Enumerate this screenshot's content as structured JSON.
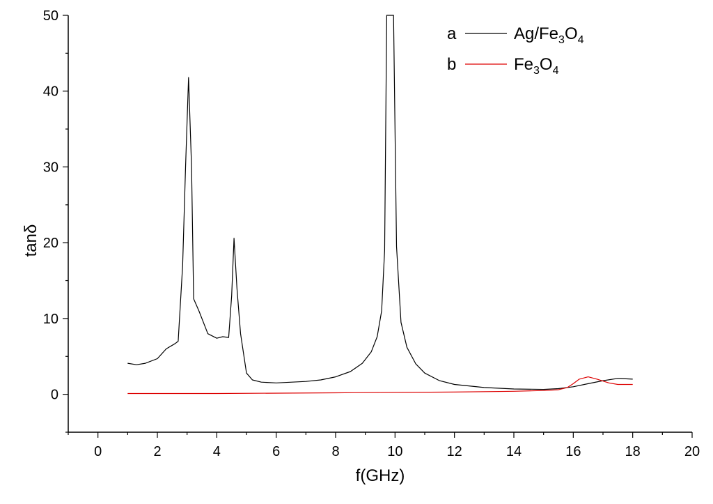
{
  "chart_data": {
    "type": "line",
    "xlabel": "f(GHz)",
    "ylabel": "tanδ",
    "xlim": [
      -1,
      20
    ],
    "ylim": [
      -5,
      50
    ],
    "x_ticks": [
      0,
      2,
      4,
      6,
      8,
      10,
      12,
      14,
      16,
      18,
      20
    ],
    "y_ticks": [
      0,
      10,
      20,
      30,
      40,
      50
    ],
    "grid": false,
    "legend_position": "top-right",
    "series": [
      {
        "key": "a",
        "color": "#000000",
        "label": {
          "pre": "Ag/Fe",
          "sub1": "3",
          "mid": "O",
          "sub2": "4"
        },
        "points": [
          [
            1.0,
            4.1
          ],
          [
            1.3,
            3.9
          ],
          [
            1.6,
            4.1
          ],
          [
            2.0,
            4.7
          ],
          [
            2.3,
            6.0
          ],
          [
            2.6,
            6.7
          ],
          [
            2.7,
            7.0
          ],
          [
            2.85,
            17.0
          ],
          [
            2.95,
            30.0
          ],
          [
            3.05,
            41.8
          ],
          [
            3.15,
            30.0
          ],
          [
            3.22,
            12.6
          ],
          [
            3.4,
            11.0
          ],
          [
            3.7,
            8.0
          ],
          [
            4.0,
            7.4
          ],
          [
            4.2,
            7.6
          ],
          [
            4.4,
            7.5
          ],
          [
            4.5,
            13.0
          ],
          [
            4.58,
            20.6
          ],
          [
            4.68,
            14.0
          ],
          [
            4.8,
            8.0
          ],
          [
            5.0,
            2.8
          ],
          [
            5.2,
            1.9
          ],
          [
            5.5,
            1.6
          ],
          [
            6.0,
            1.5
          ],
          [
            7.0,
            1.7
          ],
          [
            7.5,
            1.9
          ],
          [
            8.0,
            2.3
          ],
          [
            8.5,
            3.0
          ],
          [
            8.9,
            4.1
          ],
          [
            9.2,
            5.6
          ],
          [
            9.4,
            7.6
          ],
          [
            9.55,
            11.0
          ],
          [
            9.65,
            19.0
          ],
          [
            9.72,
            50.0
          ],
          [
            9.95,
            50.0
          ],
          [
            10.05,
            19.5
          ],
          [
            10.2,
            9.5
          ],
          [
            10.4,
            6.2
          ],
          [
            10.7,
            4.0
          ],
          [
            11.0,
            2.8
          ],
          [
            11.5,
            1.8
          ],
          [
            12.0,
            1.3
          ],
          [
            13.0,
            0.9
          ],
          [
            14.0,
            0.7
          ],
          [
            15.0,
            0.65
          ],
          [
            15.5,
            0.75
          ],
          [
            16.0,
            1.0
          ],
          [
            16.5,
            1.4
          ],
          [
            17.0,
            1.8
          ],
          [
            17.5,
            2.1
          ],
          [
            18.0,
            2.0
          ]
        ]
      },
      {
        "key": "b",
        "color": "#dd0000",
        "label": {
          "pre": "Fe",
          "sub1": "3",
          "mid": "O",
          "sub2": "4"
        },
        "points": [
          [
            1.0,
            0.1
          ],
          [
            4.0,
            0.1
          ],
          [
            8.0,
            0.2
          ],
          [
            12.0,
            0.3
          ],
          [
            14.0,
            0.4
          ],
          [
            15.0,
            0.5
          ],
          [
            15.5,
            0.6
          ],
          [
            15.8,
            0.9
          ],
          [
            16.0,
            1.4
          ],
          [
            16.2,
            2.0
          ],
          [
            16.5,
            2.3
          ],
          [
            16.8,
            2.0
          ],
          [
            17.2,
            1.5
          ],
          [
            17.5,
            1.3
          ],
          [
            18.0,
            1.3
          ]
        ]
      }
    ]
  }
}
